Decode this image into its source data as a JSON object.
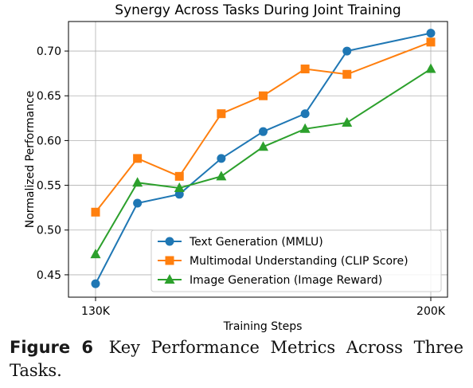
{
  "chart_data": {
    "type": "line",
    "title": "Synergy Across Tasks During Joint Training",
    "xlabel": "Training Steps",
    "ylabel": "Normalized Performance",
    "x_tick_labels": [
      "130K",
      "200K"
    ],
    "x_range": [
      130000,
      200000
    ],
    "x": [
      130000,
      138750,
      147500,
      156250,
      165000,
      173750,
      182500,
      191250,
      200000
    ],
    "ylim": [
      0.425,
      0.733
    ],
    "y_ticks": [
      0.45,
      0.5,
      0.55,
      0.6,
      0.65,
      0.7
    ],
    "y_tick_labels": [
      "0.45",
      "0.50",
      "0.55",
      "0.60",
      "0.65",
      "0.70"
    ],
    "grid": true,
    "legend_position": "lower-right",
    "series": [
      {
        "name": "Text Generation (MMLU)",
        "color": "#1f77b4",
        "marker": "circle",
        "values": [
          0.44,
          0.53,
          0.54,
          0.58,
          0.61,
          0.63,
          0.7,
          null,
          0.72
        ]
      },
      {
        "name": "Multimodal Understanding (CLIP Score)",
        "color": "#ff7f0e",
        "marker": "square",
        "values": [
          0.52,
          0.58,
          0.56,
          0.63,
          0.65,
          0.68,
          0.674,
          null,
          0.71
        ]
      },
      {
        "name": "Image Generation (Image Reward)",
        "color": "#2ca02c",
        "marker": "triangle",
        "values": [
          0.473,
          0.553,
          0.547,
          0.56,
          0.593,
          0.613,
          0.62,
          null,
          0.68
        ]
      }
    ]
  },
  "caption": {
    "label": "Figure 6",
    "text": "Key Performance Metrics Across Three Tasks."
  }
}
